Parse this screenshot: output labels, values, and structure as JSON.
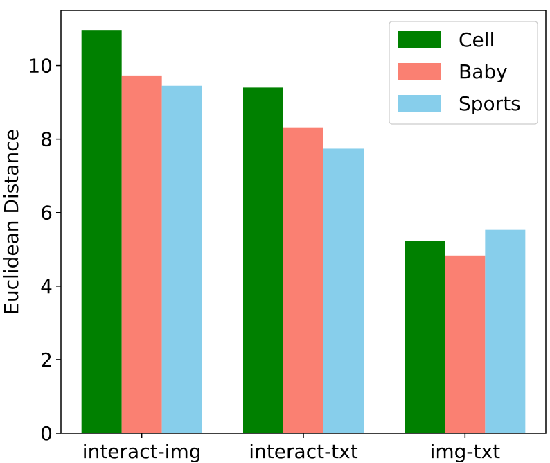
{
  "chart_data": {
    "type": "bar",
    "title": "",
    "xlabel": "",
    "ylabel": "Euclidean Distance",
    "categories": [
      "interact-img",
      "interact-txt",
      "img-txt"
    ],
    "series": [
      {
        "name": "Cell",
        "color": "#008000",
        "values": [
          10.95,
          9.4,
          5.23
        ]
      },
      {
        "name": "Baby",
        "color": "#fa8072",
        "values": [
          9.73,
          8.32,
          4.83
        ]
      },
      {
        "name": "Sports",
        "color": "#87ceeb",
        "values": [
          9.45,
          7.74,
          5.53
        ]
      }
    ],
    "ylim": [
      0,
      11.5
    ],
    "yticks": [
      "0",
      "2",
      "4",
      "6",
      "8",
      "10"
    ],
    "legend": {
      "position": "top-right"
    },
    "grid": false
  }
}
